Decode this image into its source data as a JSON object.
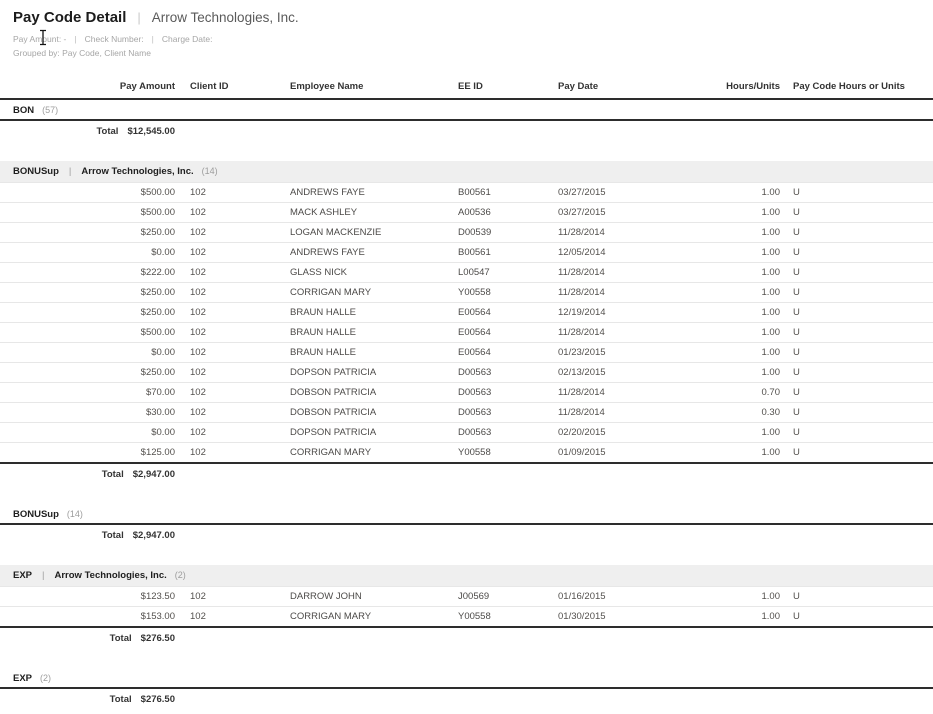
{
  "header": {
    "title": "Pay Code Detail",
    "divider": "|",
    "company": "Arrow Technologies, Inc.",
    "filter_parts": [
      "Pay Amount: -",
      "Check Number:",
      "Charge Date:"
    ],
    "grouped_by": "Grouped by: Pay Code, Client Name"
  },
  "table": {
    "columns": [
      {
        "key": "pay-amount",
        "label": "Pay Amount"
      },
      {
        "key": "client-id",
        "label": "Client ID"
      },
      {
        "key": "employee-name",
        "label": "Employee Name"
      },
      {
        "key": "ee-id",
        "label": "EE ID"
      },
      {
        "key": "pay-date",
        "label": "Pay Date"
      },
      {
        "key": "hours-units",
        "label": "Hours/Units"
      },
      {
        "key": "pay-code-hours-or-units",
        "label": "Pay Code Hours or Units"
      }
    ],
    "total_label": "Total"
  },
  "sections": [
    {
      "type": "group-summary",
      "pay_code": "BON",
      "count": "(57)",
      "total": "$12,545.00"
    },
    {
      "type": "client-group",
      "pay_code": "BONUSup",
      "client": "Arrow Technologies, Inc.",
      "count": "(14)",
      "total": "$2,947.00",
      "rows": [
        [
          "$500.00",
          "102",
          "ANDREWS FAYE",
          "B00561",
          "03/27/2015",
          "1.00",
          "U"
        ],
        [
          "$500.00",
          "102",
          "MACK ASHLEY",
          "A00536",
          "03/27/2015",
          "1.00",
          "U"
        ],
        [
          "$250.00",
          "102",
          "LOGAN MACKENZIE",
          "D00539",
          "11/28/2014",
          "1.00",
          "U"
        ],
        [
          "$0.00",
          "102",
          "ANDREWS FAYE",
          "B00561",
          "12/05/2014",
          "1.00",
          "U"
        ],
        [
          "$222.00",
          "102",
          "GLASS NICK",
          "L00547",
          "11/28/2014",
          "1.00",
          "U"
        ],
        [
          "$250.00",
          "102",
          "CORRIGAN MARY",
          "Y00558",
          "11/28/2014",
          "1.00",
          "U"
        ],
        [
          "$250.00",
          "102",
          "BRAUN HALLE",
          "E00564",
          "12/19/2014",
          "1.00",
          "U"
        ],
        [
          "$500.00",
          "102",
          "BRAUN HALLE",
          "E00564",
          "11/28/2014",
          "1.00",
          "U"
        ],
        [
          "$0.00",
          "102",
          "BRAUN HALLE",
          "E00564",
          "01/23/2015",
          "1.00",
          "U"
        ],
        [
          "$250.00",
          "102",
          "DOPSON PATRICIA",
          "D00563",
          "02/13/2015",
          "1.00",
          "U"
        ],
        [
          "$70.00",
          "102",
          "DOBSON PATRICIA",
          "D00563",
          "11/28/2014",
          "0.70",
          "U"
        ],
        [
          "$30.00",
          "102",
          "DOBSON PATRICIA",
          "D00563",
          "11/28/2014",
          "0.30",
          "U"
        ],
        [
          "$0.00",
          "102",
          "DOPSON PATRICIA",
          "D00563",
          "02/20/2015",
          "1.00",
          "U"
        ],
        [
          "$125.00",
          "102",
          "CORRIGAN MARY",
          "Y00558",
          "01/09/2015",
          "1.00",
          "U"
        ]
      ]
    },
    {
      "type": "group-summary",
      "pay_code": "BONUSup",
      "count": "(14)",
      "total": "$2,947.00"
    },
    {
      "type": "client-group",
      "pay_code": "EXP",
      "client": "Arrow Technologies, Inc.",
      "count": "(2)",
      "total": "$276.50",
      "rows": [
        [
          "$123.50",
          "102",
          "DARROW JOHN",
          "J00569",
          "01/16/2015",
          "1.00",
          "U"
        ],
        [
          "$153.00",
          "102",
          "CORRIGAN MARY",
          "Y00558",
          "01/30/2015",
          "1.00",
          "U"
        ]
      ]
    },
    {
      "type": "group-summary",
      "pay_code": "EXP",
      "count": "(2)",
      "total": "$276.50"
    }
  ]
}
